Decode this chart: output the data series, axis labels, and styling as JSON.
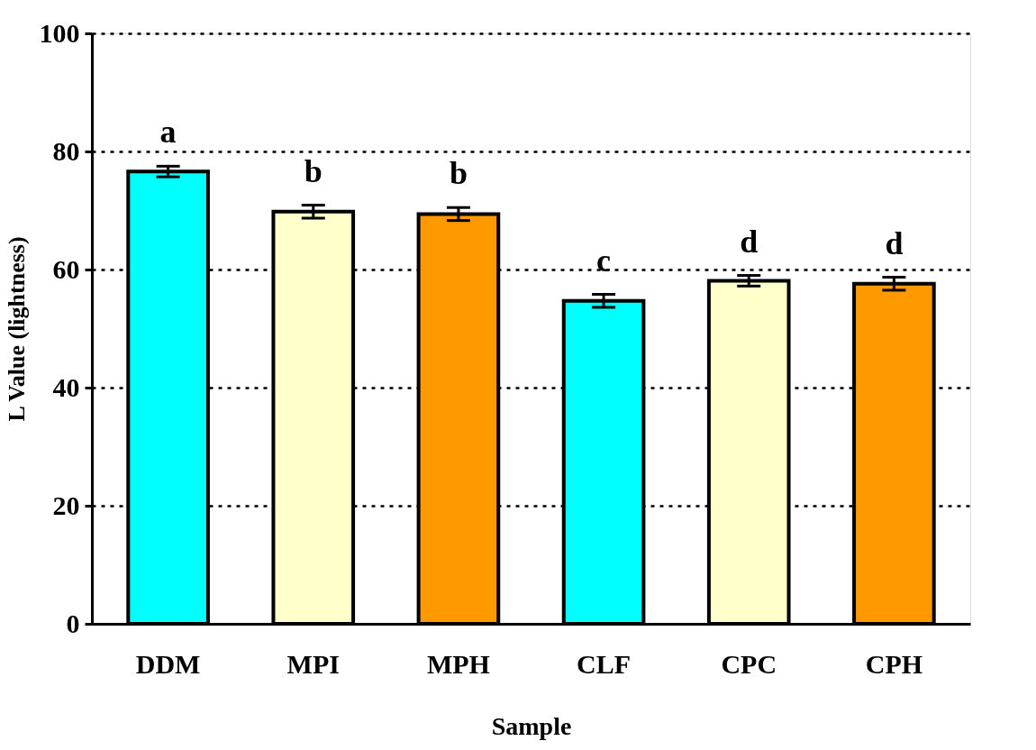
{
  "chart_data": {
    "type": "bar",
    "xlabel": "Sample",
    "ylabel": "L Value (lightness)",
    "categories": [
      "DDM",
      "MPI",
      "MPH",
      "CLF",
      "CPC",
      "CPH"
    ],
    "values": [
      76.6,
      69.8,
      69.4,
      54.7,
      58.1,
      57.6
    ],
    "errors": [
      0.9,
      1.1,
      1.1,
      1.1,
      0.9,
      1.1
    ],
    "colors": [
      "#00ffff",
      "#ffffcc",
      "#ff9900",
      "#00ffff",
      "#ffffcc",
      "#ff9900"
    ],
    "ylim": [
      0,
      100
    ],
    "yticks": [
      0,
      20,
      40,
      60,
      80,
      100
    ],
    "grid": "y",
    "annotations": [
      "a",
      "b",
      "b",
      "c",
      "d",
      "d"
    ]
  }
}
